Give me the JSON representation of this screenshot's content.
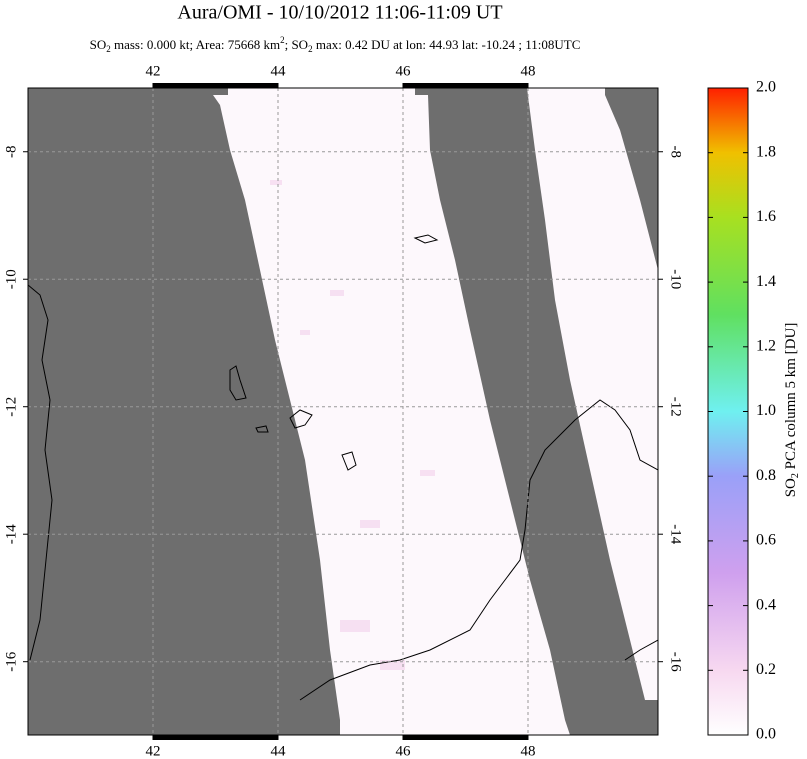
{
  "title": "Aura/OMI - 10/10/2012 11:06-11:09 UT",
  "subtitle": [
    "SO",
    "2",
    " mass: 0.000 kt; Area: 75668 km",
    "2",
    "; SO",
    "2",
    " max: 0.42 DU at lon: 44.93 lat: -10.24 ; 11:08UTC"
  ],
  "map": {
    "xlim": [
      40,
      50.08
    ],
    "ylim": [
      -17.15,
      -7
    ],
    "xticks": [
      42,
      44,
      46,
      48
    ],
    "yticks": [
      -8,
      -10,
      -12,
      -14,
      -16
    ],
    "grid": true
  },
  "colorbar": {
    "label": [
      "SO",
      "2",
      " PCA column 5 km [DU]"
    ],
    "lim": [
      0,
      2
    ],
    "ticks": [
      {
        "value": 0,
        "label": "0.0"
      },
      {
        "value": 0.2,
        "label": "0.2"
      },
      {
        "value": 0.4,
        "label": "0.4"
      },
      {
        "value": 0.6,
        "label": "0.6"
      },
      {
        "value": 0.8,
        "label": "0.8"
      },
      {
        "value": 1.0,
        "label": "1.0"
      },
      {
        "value": 1.2,
        "label": "1.2"
      },
      {
        "value": 1.4,
        "label": "1.4"
      },
      {
        "value": 1.6,
        "label": "1.6"
      },
      {
        "value": 1.8,
        "label": "1.8"
      },
      {
        "value": 2.0,
        "label": "2.0"
      }
    ]
  }
}
